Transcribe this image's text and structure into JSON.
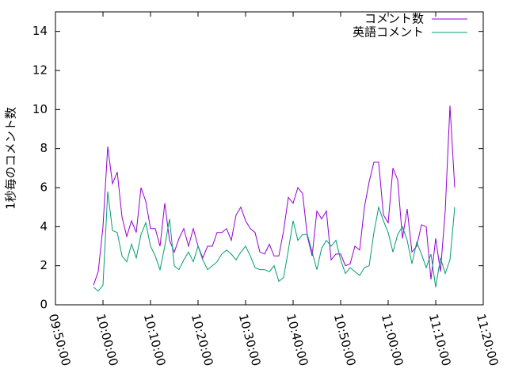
{
  "chart_data": {
    "type": "line",
    "y_label": "1秒毎のコメント数",
    "x": [
      "09:58:00",
      "09:59:00",
      "10:00:00",
      "10:01:00",
      "10:02:00",
      "10:03:00",
      "10:04:00",
      "10:05:00",
      "10:06:00",
      "10:07:00",
      "10:08:00",
      "10:09:00",
      "10:10:00",
      "10:11:00",
      "10:12:00",
      "10:13:00",
      "10:14:00",
      "10:15:00",
      "10:16:00",
      "10:17:00",
      "10:18:00",
      "10:19:00",
      "10:20:00",
      "10:21:00",
      "10:22:00",
      "10:23:00",
      "10:24:00",
      "10:25:00",
      "10:26:00",
      "10:27:00",
      "10:28:00",
      "10:29:00",
      "10:30:00",
      "10:31:00",
      "10:32:00",
      "10:33:00",
      "10:34:00",
      "10:35:00",
      "10:36:00",
      "10:37:00",
      "10:38:00",
      "10:39:00",
      "10:40:00",
      "10:41:00",
      "10:42:00",
      "10:43:00",
      "10:44:00",
      "10:45:00",
      "10:46:00",
      "10:47:00",
      "10:48:00",
      "10:49:00",
      "10:50:00",
      "10:51:00",
      "10:52:00",
      "10:53:00",
      "10:54:00",
      "10:55:00",
      "10:56:00",
      "10:57:00",
      "10:58:00",
      "10:59:00",
      "11:00:00",
      "11:01:00",
      "11:02:00",
      "11:03:00",
      "11:04:00",
      "11:05:00",
      "11:06:00",
      "11:07:00",
      "11:08:00",
      "11:09:00",
      "11:10:00",
      "11:11:00",
      "11:12:00",
      "11:13:00",
      "11:14:00"
    ],
    "series": [
      {
        "name": "コメント数",
        "color": "#9400d3",
        "values": [
          1.0,
          1.7,
          4.0,
          8.1,
          6.2,
          6.8,
          4.5,
          3.5,
          4.3,
          3.7,
          6.0,
          5.3,
          3.9,
          3.9,
          3.0,
          5.2,
          3.3,
          2.7,
          3.4,
          3.9,
          3.0,
          3.9,
          3.0,
          2.4,
          3.0,
          3.0,
          3.7,
          3.7,
          3.9,
          3.3,
          4.6,
          5.0,
          4.3,
          3.9,
          3.7,
          2.7,
          2.6,
          3.1,
          2.5,
          2.5,
          3.8,
          5.5,
          5.2,
          6.0,
          5.7,
          3.5,
          2.5,
          4.8,
          4.4,
          4.8,
          2.3,
          2.6,
          2.6,
          2.0,
          2.1,
          3.0,
          2.8,
          5.0,
          6.3,
          7.3,
          7.3,
          4.6,
          4.2,
          7.0,
          6.4,
          3.4,
          4.9,
          2.7,
          3.0,
          4.1,
          4.0,
          1.3,
          3.4,
          1.7,
          4.8,
          10.2,
          6.0
        ]
      },
      {
        "name": "英語コメント",
        "color": "#009e73",
        "values": [
          0.9,
          0.7,
          1.0,
          5.8,
          3.8,
          3.7,
          2.5,
          2.2,
          3.1,
          2.4,
          3.6,
          4.2,
          3.0,
          2.5,
          1.8,
          3.0,
          4.4,
          2.0,
          1.8,
          2.3,
          2.7,
          2.2,
          3.0,
          2.3,
          1.8,
          2.0,
          2.2,
          2.6,
          2.8,
          2.6,
          2.3,
          2.7,
          3.0,
          2.5,
          1.9,
          1.8,
          1.8,
          1.7,
          2.0,
          1.2,
          1.4,
          2.8,
          4.3,
          3.3,
          3.6,
          3.6,
          2.7,
          1.8,
          2.9,
          3.3,
          3.0,
          3.3,
          2.3,
          1.6,
          1.9,
          1.7,
          1.5,
          1.9,
          2.0,
          3.7,
          5.0,
          4.3,
          3.7,
          2.7,
          3.6,
          4.0,
          3.3,
          2.1,
          3.2,
          2.6,
          1.9,
          2.6,
          0.9,
          2.4,
          1.6,
          2.3,
          5.0
        ]
      }
    ],
    "xlim": [
      "09:50:00",
      "11:20:00"
    ],
    "xticks": [
      "09:50:00",
      "10:00:00",
      "10:10:00",
      "10:20:00",
      "10:30:00",
      "10:40:00",
      "10:50:00",
      "11:00:00",
      "11:10:00",
      "11:20:00"
    ],
    "ylim": [
      0,
      15
    ],
    "yticks": [
      0,
      2,
      4,
      6,
      8,
      10,
      12,
      14
    ],
    "legend": "top-right"
  }
}
